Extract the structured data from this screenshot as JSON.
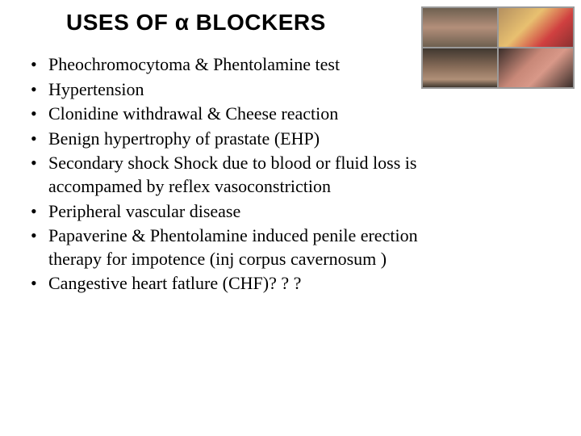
{
  "title": "USES OF α BLOCKERS",
  "title_fontsize": 28,
  "title_fontfamily": "Arial",
  "title_fontweight": 700,
  "body_fontsize": 22,
  "body_fontfamily": "Times New Roman",
  "text_color": "#000000",
  "background_color": "#ffffff",
  "bullets": [
    "Pheochromocytoma  & Phentolamine test",
    "Hypertension",
    "Clonidine withdrawal & Cheese reaction",
    "Benign hypertrophy of prastate (EHP)",
    "Secondary shock Shock due to blood or fluid loss is accompamed by reflex vasoconstriction",
    "Peripheral vascular disease",
    "Papaverine & Phentolamine induced penile erection therapy for impotence (inj corpus cavernosum )",
    "Cangestive heart fatlure (CHF)? ? ?"
  ],
  "image_grid": {
    "rows": 2,
    "cols": 2,
    "border_color": "#9a9a9a",
    "thumbs": [
      {
        "name": "hand-photo-1",
        "gradient": [
          "#6e6050",
          "#b38f7a",
          "#6e6050"
        ]
      },
      {
        "name": "hand-photo-2",
        "gradient": [
          "#b49060",
          "#e8c070",
          "#d04040",
          "#8a3030"
        ]
      },
      {
        "name": "hand-photo-3",
        "gradient": [
          "#403830",
          "#8a6e5a",
          "#b09078",
          "#403830"
        ]
      },
      {
        "name": "hand-photo-4",
        "gradient": [
          "#3a2e2a",
          "#c88878",
          "#d89888",
          "#3a2e2a"
        ]
      }
    ]
  }
}
